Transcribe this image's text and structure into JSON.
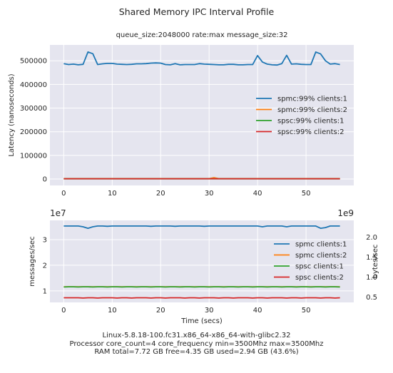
{
  "figure": {
    "title": "Shared Memory IPC Interval Profile",
    "footer_lines": [
      "Linux-5.8.18-100.fc31.x86_64-x86_64-with-glibc2.32",
      "Processor core_count=4 core_frequency min=3500Mhz max=3500Mhz",
      "RAM total=7.72 GB free=4.35 GB used=2.94 GB (43.6%)"
    ],
    "colors": {
      "axes_bg": "#e5e5ef",
      "spmc_99_clients_1": "#1f77b4",
      "spmc_99_clients_2": "#ff7f0e",
      "spsc_99_clients_1": "#2ca02c",
      "spsc_99_clients_2": "#d62728"
    }
  },
  "chart_data": [
    {
      "type": "line",
      "title": "queue_size:2048000 rate:max message_size:32",
      "xlabel": "",
      "ylabel": "Latency (nanoseconds)",
      "xlim": [
        -2.85,
        59.85
      ],
      "ylim": [
        -27000,
        567000
      ],
      "xticks": [
        0,
        10,
        20,
        30,
        40,
        50
      ],
      "yticks": [
        0,
        100000,
        200000,
        300000,
        400000,
        500000
      ],
      "grid": true,
      "legend_position": "center-right",
      "x": [
        0,
        1,
        2,
        3,
        4,
        5,
        6,
        7,
        8,
        9,
        10,
        11,
        12,
        13,
        14,
        15,
        16,
        17,
        18,
        19,
        20,
        21,
        22,
        23,
        24,
        25,
        26,
        27,
        28,
        29,
        30,
        31,
        32,
        33,
        34,
        35,
        36,
        37,
        38,
        39,
        40,
        41,
        42,
        43,
        44,
        45,
        46,
        47,
        48,
        49,
        50,
        51,
        52,
        53,
        54,
        55,
        56,
        57
      ],
      "series": [
        {
          "name": "spmc:99% clients:1",
          "values": [
            488000,
            484000,
            486000,
            483000,
            485000,
            537000,
            530000,
            484000,
            487000,
            489000,
            489000,
            486000,
            485000,
            484000,
            485000,
            487000,
            487000,
            488000,
            490000,
            491000,
            490000,
            484000,
            483000,
            488000,
            483000,
            484000,
            484000,
            484000,
            488000,
            486000,
            485000,
            484000,
            483000,
            483000,
            485000,
            485000,
            483000,
            483000,
            484000,
            484000,
            522000,
            495000,
            486000,
            483000,
            482000,
            488000,
            523000,
            486000,
            487000,
            485000,
            484000,
            484000,
            537000,
            529000,
            500000,
            486000,
            488000,
            484000
          ]
        },
        {
          "name": "spmc:99% clients:2",
          "values": [
            1500,
            1500,
            1500,
            1500,
            1500,
            1500,
            1500,
            1500,
            1500,
            1500,
            1500,
            1500,
            1500,
            1500,
            1500,
            1500,
            1500,
            1500,
            1500,
            1500,
            1500,
            1500,
            1500,
            1500,
            1500,
            1500,
            1500,
            1500,
            1500,
            1500,
            1500,
            6000,
            1500,
            1500,
            1500,
            1500,
            1500,
            1500,
            1500,
            1500,
            1500,
            1500,
            1500,
            1500,
            1500,
            1500,
            1500,
            1500,
            1500,
            1500,
            1500,
            1500,
            1500,
            1500,
            1500,
            1500,
            1500,
            1500
          ]
        },
        {
          "name": "spsc:99% clients:1",
          "values": [
            1000,
            1000,
            1000,
            1000,
            1000,
            1000,
            1000,
            1000,
            1000,
            1000,
            1000,
            1000,
            1000,
            1000,
            1000,
            1000,
            1000,
            1000,
            1000,
            1000,
            1000,
            1000,
            1000,
            1000,
            1000,
            1000,
            1000,
            1000,
            1000,
            1000,
            1000,
            1000,
            1000,
            1000,
            1000,
            1000,
            1000,
            1000,
            1000,
            1000,
            1000,
            1000,
            1000,
            1000,
            1000,
            1000,
            1000,
            1000,
            1000,
            1000,
            1000,
            1000,
            1000,
            1000,
            1000,
            1000,
            1000,
            1000
          ]
        },
        {
          "name": "spsc:99% clients:2",
          "values": [
            1200,
            1200,
            1200,
            1200,
            1200,
            1200,
            1200,
            1200,
            1200,
            1200,
            1200,
            1200,
            1200,
            1200,
            1200,
            1200,
            1200,
            1200,
            1200,
            1200,
            1200,
            1200,
            1200,
            1200,
            1200,
            1200,
            1200,
            1200,
            1200,
            1200,
            1200,
            1200,
            1200,
            1200,
            1200,
            1200,
            1200,
            1200,
            1200,
            1200,
            1200,
            1200,
            1200,
            1200,
            1200,
            1200,
            1200,
            1200,
            1200,
            1200,
            1200,
            1200,
            1200,
            1200,
            1200,
            1200,
            1200,
            1200
          ]
        }
      ]
    },
    {
      "type": "line",
      "title": "",
      "xlabel": "Time (secs)",
      "ylabel": "messages/sec",
      "y2label": "bytes/sec",
      "offset_text": "1e7",
      "offset_text_right": "1e9",
      "xlim": [
        -2.85,
        59.85
      ],
      "ylim": [
        0.55,
        3.75
      ],
      "y2lim": [
        0.37,
        2.42
      ],
      "xticks": [
        0,
        10,
        20,
        30,
        40,
        50
      ],
      "yticks": [
        1,
        2,
        3
      ],
      "y2ticks": [
        0.5,
        1.0,
        1.5,
        2.0
      ],
      "y2tick_labels": [
        "0.5",
        "1.0",
        "1.5",
        "2.0"
      ],
      "grid": true,
      "legend_position": "center-right",
      "x": [
        0,
        1,
        2,
        3,
        4,
        5,
        6,
        7,
        8,
        9,
        10,
        11,
        12,
        13,
        14,
        15,
        16,
        17,
        18,
        19,
        20,
        21,
        22,
        23,
        24,
        25,
        26,
        27,
        28,
        29,
        30,
        31,
        32,
        33,
        34,
        35,
        36,
        37,
        38,
        39,
        40,
        41,
        42,
        43,
        44,
        45,
        46,
        47,
        48,
        49,
        50,
        51,
        52,
        53,
        54,
        55,
        56,
        57
      ],
      "series": [
        {
          "name": "spmc clients:1",
          "values": [
            3.53,
            3.53,
            3.53,
            3.53,
            3.5,
            3.44,
            3.5,
            3.53,
            3.53,
            3.52,
            3.53,
            3.53,
            3.53,
            3.53,
            3.53,
            3.53,
            3.53,
            3.53,
            3.52,
            3.53,
            3.53,
            3.53,
            3.53,
            3.52,
            3.53,
            3.53,
            3.53,
            3.53,
            3.53,
            3.52,
            3.53,
            3.53,
            3.53,
            3.53,
            3.53,
            3.53,
            3.53,
            3.53,
            3.53,
            3.53,
            3.53,
            3.5,
            3.53,
            3.53,
            3.53,
            3.53,
            3.5,
            3.53,
            3.53,
            3.53,
            3.53,
            3.53,
            3.53,
            3.44,
            3.47,
            3.53,
            3.53,
            3.53
          ]
        },
        {
          "name": "spmc clients:2",
          "values": [
            1.16,
            1.16,
            1.16,
            1.16,
            1.16,
            1.16,
            1.16,
            1.16,
            1.16,
            1.16,
            1.16,
            1.16,
            1.16,
            1.16,
            1.16,
            1.16,
            1.16,
            1.16,
            1.16,
            1.16,
            1.16,
            1.16,
            1.16,
            1.16,
            1.16,
            1.16,
            1.16,
            1.16,
            1.16,
            1.16,
            1.16,
            1.16,
            1.16,
            1.16,
            1.16,
            1.16,
            1.16,
            1.16,
            1.16,
            1.16,
            1.16,
            1.16,
            1.16,
            1.16,
            1.16,
            1.16,
            1.16,
            1.16,
            1.16,
            1.16,
            1.16,
            1.16,
            1.16,
            1.16,
            1.16,
            1.16,
            1.16,
            1.16
          ]
        },
        {
          "name": "spsc clients:1",
          "values": [
            1.15,
            1.16,
            1.16,
            1.15,
            1.16,
            1.16,
            1.15,
            1.16,
            1.16,
            1.15,
            1.16,
            1.16,
            1.15,
            1.16,
            1.16,
            1.15,
            1.16,
            1.16,
            1.15,
            1.16,
            1.16,
            1.15,
            1.16,
            1.16,
            1.15,
            1.16,
            1.16,
            1.15,
            1.16,
            1.16,
            1.15,
            1.16,
            1.16,
            1.15,
            1.16,
            1.16,
            1.15,
            1.16,
            1.16,
            1.15,
            1.16,
            1.16,
            1.15,
            1.16,
            1.16,
            1.15,
            1.16,
            1.16,
            1.15,
            1.16,
            1.16,
            1.15,
            1.16,
            1.16,
            1.15,
            1.16,
            1.16,
            1.15
          ]
        },
        {
          "name": "spsc clients:2",
          "values": [
            0.73,
            0.73,
            0.73,
            0.73,
            0.72,
            0.73,
            0.73,
            0.72,
            0.73,
            0.73,
            0.73,
            0.72,
            0.73,
            0.73,
            0.72,
            0.73,
            0.73,
            0.73,
            0.72,
            0.73,
            0.73,
            0.72,
            0.73,
            0.73,
            0.73,
            0.72,
            0.73,
            0.73,
            0.72,
            0.73,
            0.73,
            0.73,
            0.72,
            0.73,
            0.73,
            0.72,
            0.73,
            0.73,
            0.73,
            0.72,
            0.73,
            0.73,
            0.72,
            0.73,
            0.73,
            0.73,
            0.72,
            0.73,
            0.73,
            0.72,
            0.73,
            0.73,
            0.73,
            0.72,
            0.73,
            0.73,
            0.72,
            0.73
          ]
        }
      ]
    }
  ]
}
